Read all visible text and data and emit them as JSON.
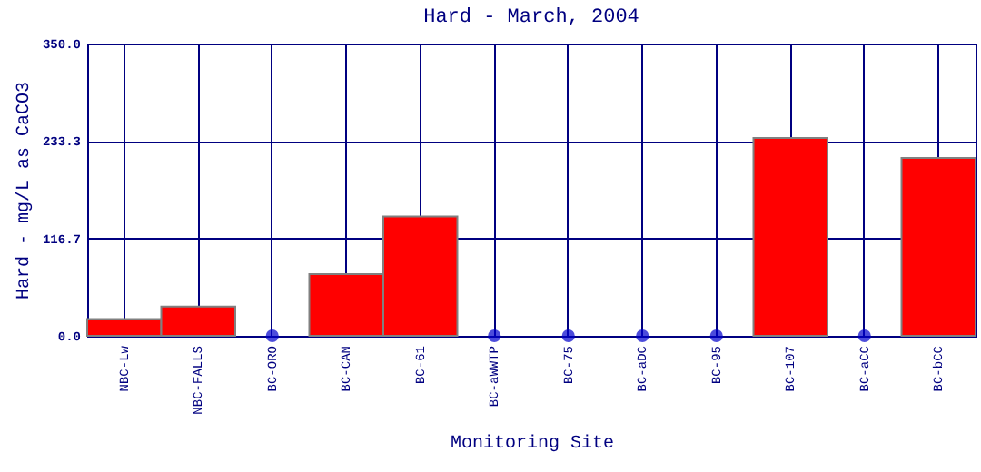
{
  "chart_data": {
    "type": "bar",
    "title": "Hard - March, 2004",
    "xlabel": "Monitoring Site",
    "ylabel": "Hard - mg/L as CaCO3",
    "categories": [
      "NBC-Lw",
      "NBC-FALLS",
      "BC-ORO",
      "BC-CAN",
      "BC-61",
      "BC-aWWTP",
      "BC-75",
      "BC-aDC",
      "BC-95",
      "BC-107",
      "BC-aCC",
      "BC-bCC"
    ],
    "series": [
      {
        "color": "#ff0000",
        "values": [
          20,
          35,
          null,
          74,
          143,
          null,
          null,
          null,
          null,
          237,
          null,
          213
        ]
      },
      {
        "type": "scatter",
        "color": "#0000cc",
        "values": [
          null,
          null,
          0,
          null,
          null,
          0,
          0,
          0,
          0,
          null,
          0,
          null
        ]
      }
    ],
    "ylim": [
      0,
      350
    ],
    "yticks": [
      {
        "value": 0,
        "label": "0.0"
      },
      {
        "value": 116.7,
        "label": "116.7"
      },
      {
        "value": 233.3,
        "label": "233.3"
      },
      {
        "value": 350,
        "label": "350.0"
      }
    ],
    "grid": true
  }
}
